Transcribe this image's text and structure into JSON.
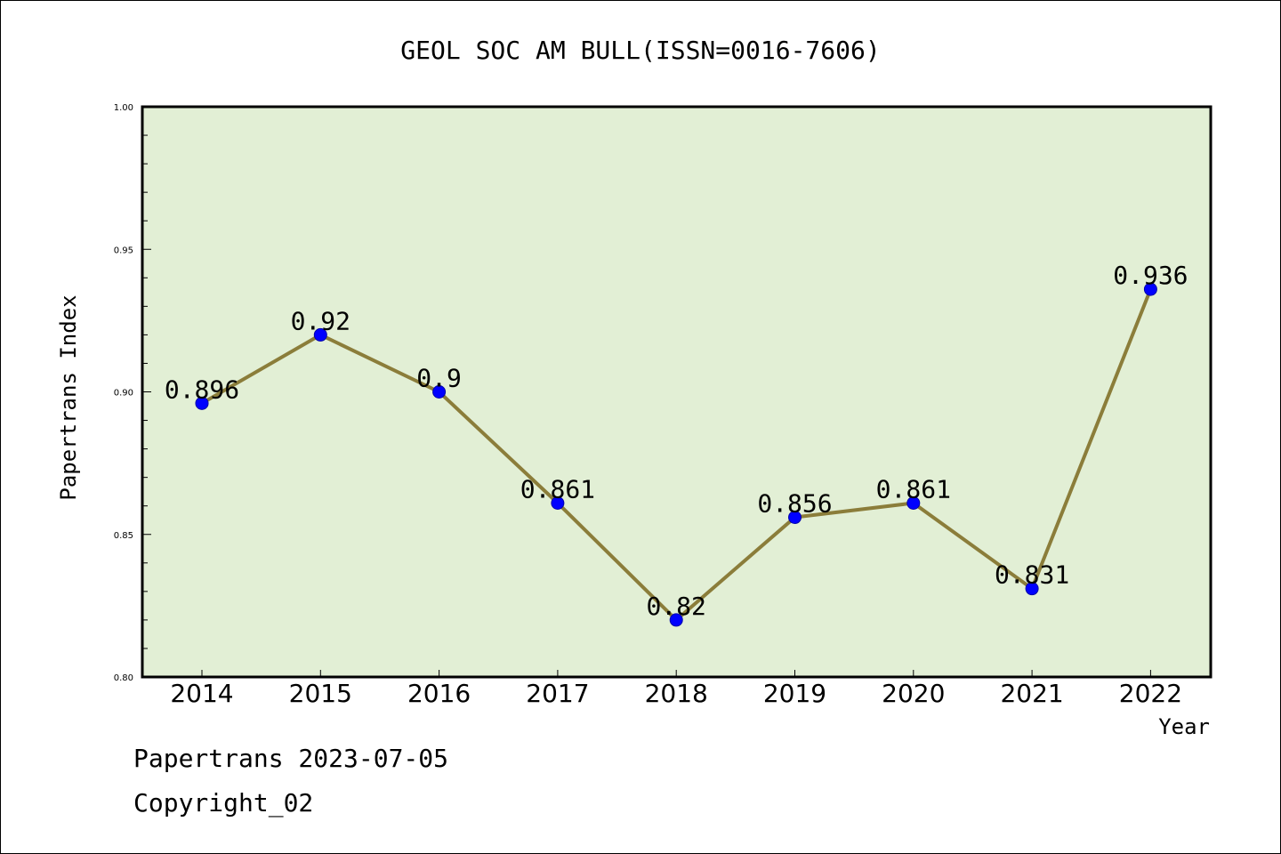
{
  "chart_data": {
    "type": "line",
    "title": "GEOL SOC AM BULL(ISSN=0016-7606)",
    "xlabel": "Year",
    "ylabel": "Papertrans Index",
    "categories": [
      "2014",
      "2015",
      "2016",
      "2017",
      "2018",
      "2019",
      "2020",
      "2021",
      "2022"
    ],
    "values": [
      0.896,
      0.92,
      0.9,
      0.861,
      0.82,
      0.856,
      0.861,
      0.831,
      0.936
    ],
    "value_labels": [
      "0.896",
      "0.92",
      "0.9",
      "0.861",
      "0.82",
      "0.856",
      "0.861",
      "0.831",
      "0.936"
    ],
    "ylim": [
      0.8,
      1.0
    ],
    "yticks": [
      0.8,
      0.85,
      0.9,
      0.95,
      1.0
    ],
    "ytick_labels": [
      "0.80",
      "0.85",
      "0.90",
      "0.95",
      "1.00"
    ],
    "grid": false,
    "colors": {
      "plot_background": "#e2efd5",
      "line": "#8b7d3a",
      "marker": "#0000ff"
    }
  },
  "footer": {
    "date_line": "Papertrans 2023-07-05",
    "copyright": "Copyright_02"
  }
}
